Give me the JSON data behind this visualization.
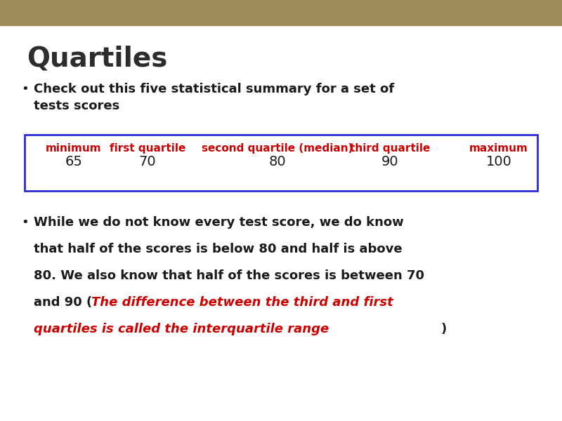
{
  "title": "Quartiles",
  "title_color": "#2d2d2d",
  "title_fontsize": 28,
  "title_fontweight": "bold",
  "background_color": "#ffffff",
  "header_bar_color": "#9e8c5a",
  "bullet1_color": "#1a1a1a",
  "bullet1_fontsize": 13,
  "table_headers": [
    "minimum",
    "first quartile",
    "second quartile (median)",
    "third quartile",
    "maximum"
  ],
  "table_values": [
    "65",
    "70",
    "80",
    "90",
    "100"
  ],
  "table_header_color": "#cc0000",
  "table_value_color": "#1a1a1a",
  "table_border_color": "#2b2bd4",
  "table_header_fontsize": 11,
  "table_value_fontsize": 14,
  "bullet2_color": "#1a1a1a",
  "bullet2_italic_color": "#cc0000",
  "bullet2_fontsize": 13
}
